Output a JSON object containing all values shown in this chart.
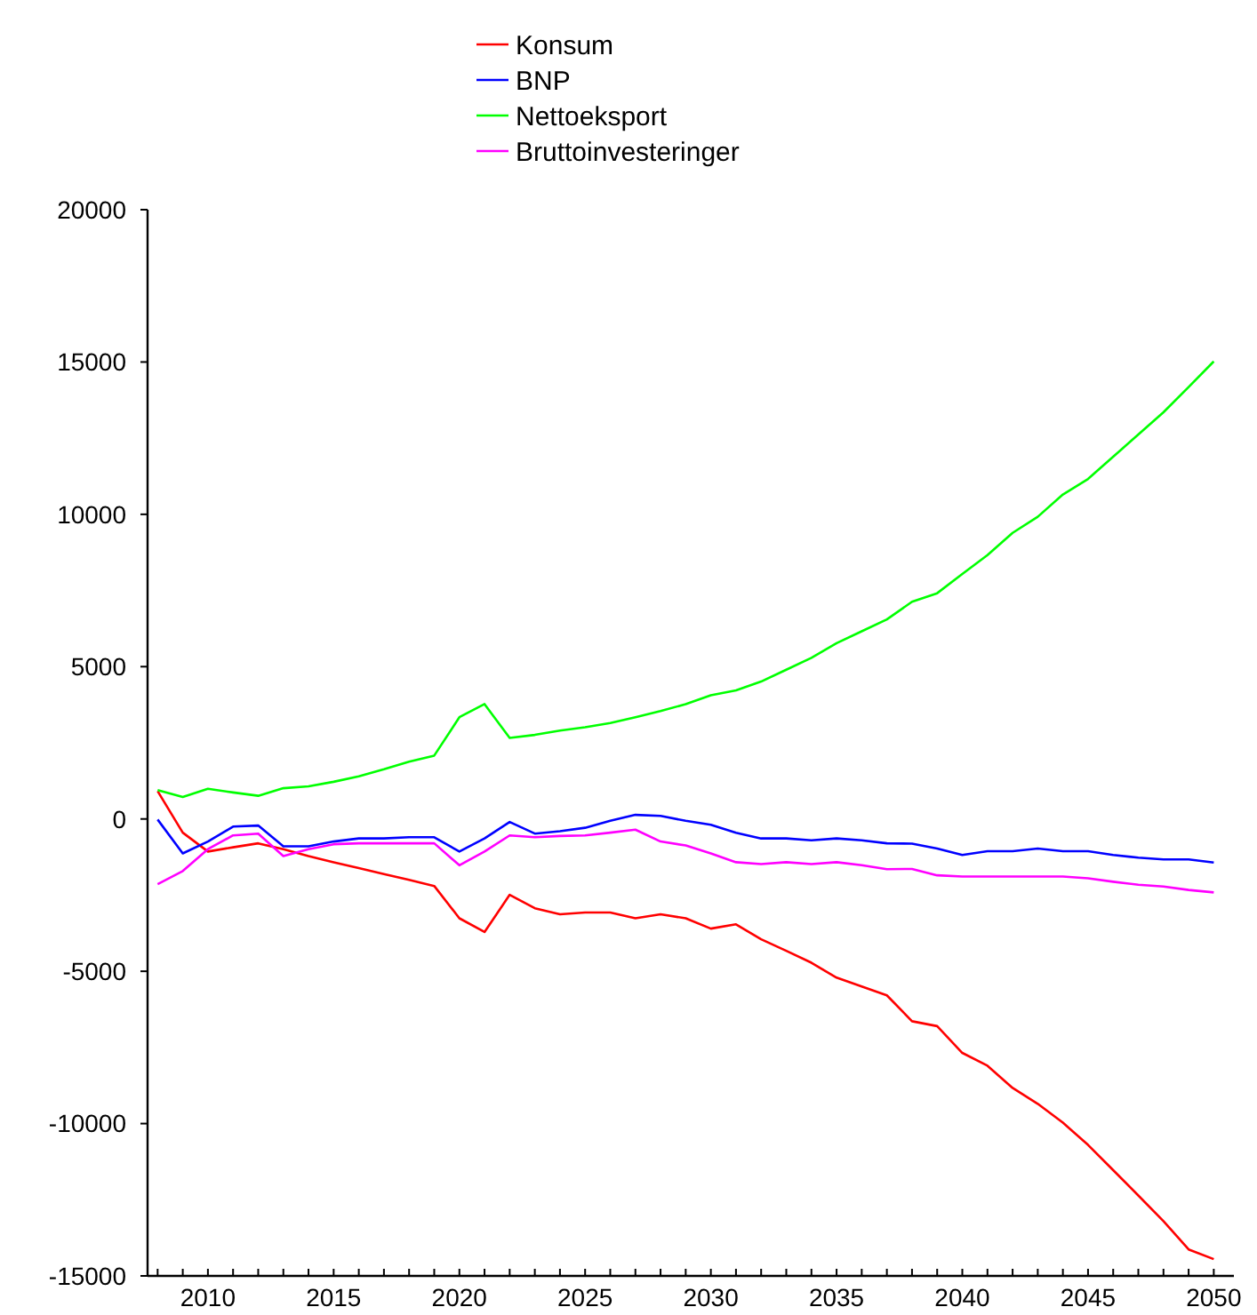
{
  "chart_data": {
    "type": "line",
    "x": [
      2008,
      2009,
      2010,
      2011,
      2012,
      2013,
      2014,
      2015,
      2016,
      2017,
      2018,
      2019,
      2020,
      2021,
      2022,
      2023,
      2024,
      2025,
      2026,
      2027,
      2028,
      2029,
      2030,
      2031,
      2032,
      2033,
      2034,
      2035,
      2036,
      2037,
      2038,
      2039,
      2040,
      2041,
      2042,
      2043,
      2044,
      2045,
      2046,
      2047,
      2048,
      2049,
      2050
    ],
    "series": [
      {
        "name": "Konsum",
        "color": "#ff0000",
        "values": [
          915,
          -450,
          -1070,
          -930,
          -800,
          -990,
          -1220,
          -1420,
          -1610,
          -1810,
          -2000,
          -2200,
          -3260,
          -3710,
          -2490,
          -2930,
          -3130,
          -3070,
          -3070,
          -3260,
          -3130,
          -3260,
          -3600,
          -3460,
          -3950,
          -4330,
          -4720,
          -5210,
          -5500,
          -5790,
          -6640,
          -6800,
          -7680,
          -8100,
          -8830,
          -9350,
          -9970,
          -10700,
          -11530,
          -12360,
          -13200,
          -14130,
          -14450
        ]
      },
      {
        "name": "BNP",
        "color": "#0000ff",
        "values": [
          -20,
          -1130,
          -740,
          -250,
          -215,
          -900,
          -900,
          -740,
          -640,
          -640,
          -600,
          -600,
          -1070,
          -640,
          -100,
          -480,
          -400,
          -290,
          -60,
          135,
          100,
          -60,
          -190,
          -450,
          -640,
          -640,
          -700,
          -640,
          -700,
          -800,
          -810,
          -970,
          -1180,
          -1060,
          -1060,
          -970,
          -1060,
          -1060,
          -1180,
          -1270,
          -1330,
          -1330,
          -1430
        ]
      },
      {
        "name": "Nettoeksport",
        "color": "#00ff00",
        "values": [
          950,
          720,
          990,
          870,
          760,
          1010,
          1070,
          1220,
          1400,
          1630,
          1880,
          2080,
          3340,
          3770,
          2660,
          2760,
          2900,
          3010,
          3150,
          3340,
          3540,
          3770,
          4060,
          4220,
          4510,
          4900,
          5290,
          5770,
          6160,
          6550,
          7130,
          7410,
          8040,
          8660,
          9390,
          9920,
          10650,
          11160,
          11890,
          12620,
          13350,
          14180,
          15020
        ]
      },
      {
        "name": "Bruttoinvesteringer",
        "color": "#ff00ff",
        "values": [
          -2140,
          -1710,
          -990,
          -540,
          -480,
          -1220,
          -990,
          -830,
          -800,
          -800,
          -800,
          -800,
          -1520,
          -1070,
          -540,
          -600,
          -560,
          -540,
          -450,
          -350,
          -740,
          -870,
          -1130,
          -1420,
          -1480,
          -1420,
          -1480,
          -1420,
          -1520,
          -1650,
          -1640,
          -1850,
          -1890,
          -1890,
          -1890,
          -1890,
          -1890,
          -1950,
          -2060,
          -2160,
          -2220,
          -2330,
          -2410
        ]
      }
    ],
    "xlim": [
      2007.6,
      2050.8
    ],
    "xticks": [
      {
        "value": 2008,
        "label": null
      },
      {
        "value": 2009,
        "label": null
      },
      2010,
      {
        "value": 2011,
        "label": null
      },
      {
        "value": 2012,
        "label": null
      },
      {
        "value": 2013,
        "label": null
      },
      {
        "value": 2014,
        "label": null
      },
      2015,
      {
        "value": 2016,
        "label": null
      },
      {
        "value": 2017,
        "label": null
      },
      {
        "value": 2018,
        "label": null
      },
      {
        "value": 2019,
        "label": null
      },
      2020,
      {
        "value": 2021,
        "label": null
      },
      {
        "value": 2022,
        "label": null
      },
      {
        "value": 2023,
        "label": null
      },
      {
        "value": 2024,
        "label": null
      },
      2025,
      {
        "value": 2026,
        "label": null
      },
      {
        "value": 2027,
        "label": null
      },
      {
        "value": 2028,
        "label": null
      },
      {
        "value": 2029,
        "label": null
      },
      2030,
      {
        "value": 2031,
        "label": null
      },
      {
        "value": 2032,
        "label": null
      },
      {
        "value": 2033,
        "label": null
      },
      {
        "value": 2034,
        "label": null
      },
      2035,
      {
        "value": 2036,
        "label": null
      },
      {
        "value": 2037,
        "label": null
      },
      {
        "value": 2038,
        "label": null
      },
      {
        "value": 2039,
        "label": null
      },
      2040,
      {
        "value": 2041,
        "label": null
      },
      {
        "value": 2042,
        "label": null
      },
      {
        "value": 2043,
        "label": null
      },
      {
        "value": 2044,
        "label": null
      },
      2045,
      {
        "value": 2046,
        "label": null
      },
      {
        "value": 2047,
        "label": null
      },
      {
        "value": 2048,
        "label": null
      },
      {
        "value": 2049,
        "label": null
      },
      2050
    ],
    "ylim": [
      -15000,
      20000
    ],
    "yticks": [
      -15000,
      -10000,
      -5000,
      0,
      5000,
      10000,
      15000,
      20000
    ],
    "legend": "top",
    "grid": false,
    "marker": "none",
    "line_style": "solid"
  }
}
